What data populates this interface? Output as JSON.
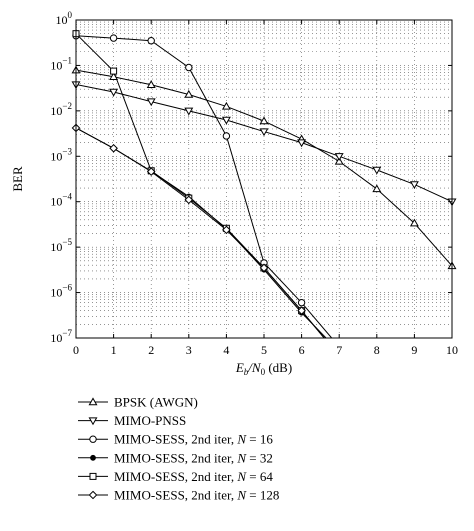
{
  "chart_data": {
    "type": "line",
    "title": "",
    "xlabel": "E_b/N_0 (dB)",
    "xlabel_parts": {
      "main": "E",
      "sub1": "b",
      "mid": "/N",
      "sub2": "0",
      "tail": " (dB)"
    },
    "ylabel": "BER",
    "xlim": [
      0,
      10
    ],
    "ylim": [
      1e-07,
      1
    ],
    "yscale": "log",
    "grid": true,
    "legend_position": "below",
    "x_ticks": [
      0,
      1,
      2,
      3,
      4,
      5,
      6,
      7,
      8,
      9,
      10
    ],
    "x_tick_labels": [
      "0",
      "1",
      "2",
      "3",
      "4",
      "5",
      "6",
      "7",
      "8",
      "9",
      "10"
    ],
    "y_ticks": [
      {
        "value": 1,
        "base": "10",
        "exp": "0"
      },
      {
        "value": 0.1,
        "base": "10",
        "exp": "−1"
      },
      {
        "value": 0.01,
        "base": "10",
        "exp": "−2"
      },
      {
        "value": 0.001,
        "base": "10",
        "exp": "−3"
      },
      {
        "value": 0.0001,
        "base": "10",
        "exp": "−4"
      },
      {
        "value": 1e-05,
        "base": "10",
        "exp": "−5"
      },
      {
        "value": 1e-06,
        "base": "10",
        "exp": "−6"
      },
      {
        "value": 1e-07,
        "base": "10",
        "exp": "−7"
      }
    ],
    "series": [
      {
        "name": "BPSK (AWGN)",
        "marker": "triangle-up",
        "x": [
          0,
          1,
          2,
          3,
          4,
          5,
          6,
          7,
          8,
          9,
          10
        ],
        "y": [
          0.0786,
          0.0563,
          0.0375,
          0.0229,
          0.0125,
          0.00595,
          0.00239,
          0.000773,
          0.000191,
          3.36e-05,
          3.87e-06
        ]
      },
      {
        "name": "MIMO-PNSS",
        "marker": "triangle-down",
        "x": [
          0,
          1,
          2,
          3,
          4,
          5,
          6,
          7,
          8,
          9,
          10
        ],
        "y": [
          0.038,
          0.026,
          0.016,
          0.01,
          0.0063,
          0.0035,
          0.002,
          0.001,
          0.0005,
          0.00024,
          0.0001
        ]
      },
      {
        "name": "MIMO-SESS, 2nd iter, N = 16",
        "name_prefix": "MIMO-SESS, 2nd iter, ",
        "name_var": "N",
        "name_suffix": " = 16",
        "marker": "circle",
        "x": [
          0,
          1,
          2,
          3,
          4,
          5,
          6,
          6.8
        ],
        "y": [
          0.45,
          0.4,
          0.35,
          0.09,
          0.0028,
          4.5e-06,
          6e-07,
          1e-07
        ]
      },
      {
        "name": "MIMO-SESS, 2nd iter, N = 32",
        "name_prefix": "MIMO-SESS, 2nd iter, ",
        "name_var": "N",
        "name_suffix": " = 32",
        "marker": "dot",
        "x": [
          0,
          1,
          2,
          3,
          4,
          5,
          6,
          6.65
        ],
        "y": [
          0.0042,
          0.0015,
          0.00047,
          0.00013,
          2.5e-05,
          3.2e-06,
          3.6e-07,
          1e-07
        ]
      },
      {
        "name": "MIMO-SESS, 2nd iter, N = 64",
        "name_prefix": "MIMO-SESS, 2nd iter, ",
        "name_var": "N",
        "name_suffix": " = 64",
        "marker": "square",
        "x": [
          0,
          1,
          2,
          3,
          4,
          5,
          6,
          6.6
        ],
        "y": [
          0.5,
          0.075,
          0.00048,
          0.00012,
          2.6e-05,
          3.5e-06,
          4e-07,
          1e-07
        ]
      },
      {
        "name": "MIMO-SESS, 2nd iter, N = 128",
        "name_prefix": "MIMO-SESS, 2nd iter, ",
        "name_var": "N",
        "name_suffix": " = 128",
        "marker": "diamond",
        "x": [
          0,
          1,
          2,
          3,
          4,
          5,
          6,
          6.6
        ],
        "y": [
          0.0042,
          0.0015,
          0.00046,
          0.00011,
          2.4e-05,
          3.5e-06,
          4e-07,
          1e-07
        ]
      }
    ]
  }
}
